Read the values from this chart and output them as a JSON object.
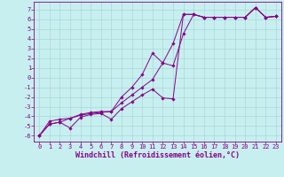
{
  "xlabel": "Windchill (Refroidissement éolien,°C)",
  "bg_color": "#c8efef",
  "grid_color": "#a8d8d8",
  "line_color": "#880088",
  "x_ticks": [
    0,
    1,
    2,
    3,
    4,
    5,
    6,
    7,
    8,
    9,
    10,
    11,
    12,
    13,
    14,
    15,
    16,
    17,
    18,
    19,
    20,
    21,
    22,
    23
  ],
  "y_ticks": [
    7,
    6,
    5,
    4,
    3,
    2,
    1,
    0,
    -1,
    -2,
    -3,
    -4,
    -5,
    -6
  ],
  "ylim": [
    -6.6,
    7.8
  ],
  "xlim": [
    -0.5,
    23.5
  ],
  "line1_x": [
    0,
    1,
    2,
    3,
    4,
    5,
    6,
    7,
    8,
    9,
    10,
    11,
    12,
    13,
    14,
    15,
    16,
    17,
    18,
    19,
    20,
    21,
    22,
    23
  ],
  "line1_y": [
    -6.0,
    -4.8,
    -4.6,
    -5.2,
    -4.1,
    -3.8,
    -3.7,
    -4.3,
    -3.2,
    -2.5,
    -1.8,
    -1.2,
    -2.1,
    -2.2,
    6.5,
    6.5,
    6.2,
    6.2,
    6.2,
    6.2,
    6.2,
    7.2,
    6.2,
    6.3
  ],
  "line2_x": [
    0,
    1,
    2,
    3,
    4,
    5,
    6,
    7,
    8,
    9,
    10,
    11,
    12,
    13,
    14,
    15,
    16,
    17,
    18,
    19,
    20,
    21,
    22,
    23
  ],
  "line2_y": [
    -6.0,
    -4.8,
    -4.6,
    -4.2,
    -3.9,
    -3.7,
    -3.6,
    -3.5,
    -2.6,
    -1.8,
    -1.0,
    -0.2,
    1.5,
    1.2,
    4.5,
    6.5,
    6.2,
    6.2,
    6.2,
    6.2,
    6.2,
    7.2,
    6.2,
    6.3
  ],
  "line3_x": [
    0,
    1,
    2,
    3,
    4,
    5,
    6,
    7,
    8,
    9,
    10,
    11,
    12,
    13,
    14,
    15,
    16,
    17,
    18,
    19,
    20,
    21,
    22,
    23
  ],
  "line3_y": [
    -6.0,
    -4.5,
    -4.3,
    -4.2,
    -3.8,
    -3.6,
    -3.5,
    -3.5,
    -2.0,
    -1.0,
    0.3,
    2.5,
    1.5,
    3.5,
    6.5,
    6.5,
    6.2,
    6.2,
    6.2,
    6.2,
    6.2,
    7.2,
    6.2,
    6.3
  ],
  "tick_font_size": 5.0,
  "xlabel_font_size": 6.0
}
